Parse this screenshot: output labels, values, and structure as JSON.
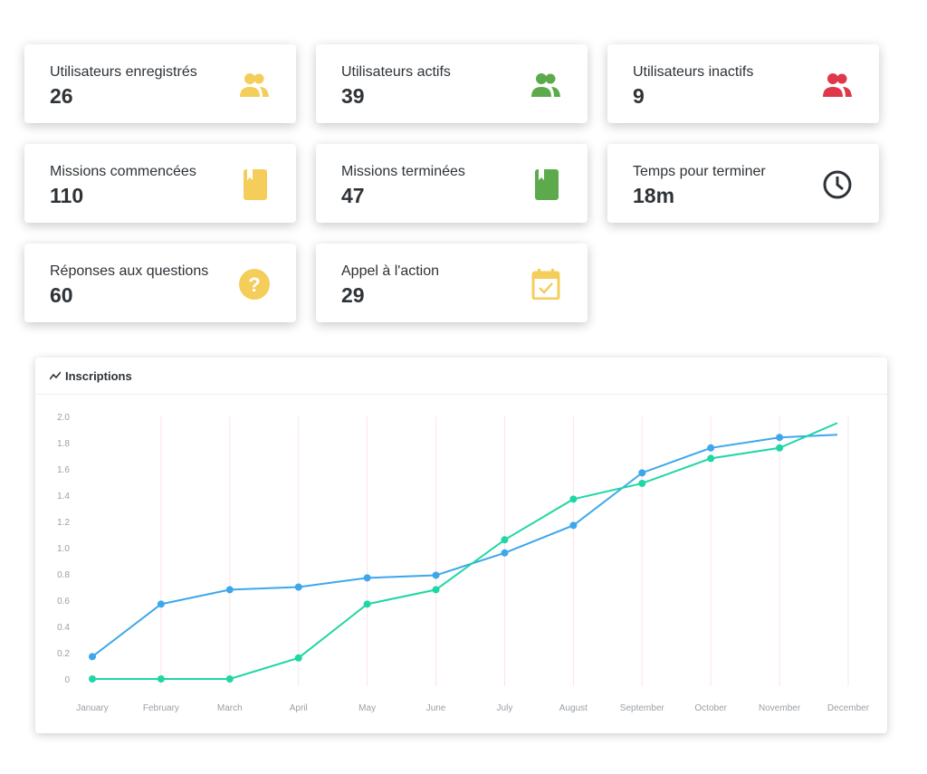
{
  "cards": [
    {
      "label": "Utilisateurs enregistrés",
      "value": "26",
      "icon": "users-icon",
      "color": "#f5cd5b"
    },
    {
      "label": "Utilisateurs actifs",
      "value": "39",
      "icon": "users-icon",
      "color": "#5daa4c"
    },
    {
      "label": "Utilisateurs inactifs",
      "value": "9",
      "icon": "users-icon",
      "color": "#df3848"
    },
    {
      "label": "Missions commencées",
      "value": "110",
      "icon": "bookmark-book-icon",
      "color": "#f5cd5b"
    },
    {
      "label": "Missions terminées",
      "value": "47",
      "icon": "bookmark-book-icon",
      "color": "#5daa4c"
    },
    {
      "label": "Temps pour terminer",
      "value": "18m",
      "icon": "clock-icon",
      "color": "#2e3338"
    },
    {
      "label": "Réponses aux questions",
      "value": "60",
      "icon": "question-circle-icon",
      "color": "#f5cd5b"
    },
    {
      "label": "Appel à l'action",
      "value": "29",
      "icon": "calendar-check-icon",
      "color": "#f5cd5b"
    }
  ],
  "chart_panel": {
    "title": "Inscriptions",
    "icon": "line-chart-icon"
  },
  "chart_data": {
    "type": "line",
    "categories": [
      "January",
      "February",
      "March",
      "April",
      "May",
      "June",
      "July",
      "August",
      "September",
      "October",
      "November",
      "December"
    ],
    "ylim": [
      0,
      2.0
    ],
    "yticks": [
      "0",
      "0.2",
      "0.4",
      "0.6",
      "0.8",
      "1.0",
      "1.2",
      "1.4",
      "1.6",
      "1.8",
      "2.0"
    ],
    "grid": "vertical",
    "series": [
      {
        "color": "#3ea7ec",
        "values": [
          0.17,
          0.57,
          0.68,
          0.7,
          0.77,
          0.79,
          0.96,
          1.17,
          1.57,
          1.76,
          1.84,
          1.86
        ]
      },
      {
        "color": "#1fd6a5",
        "values": [
          0,
          0,
          0,
          0.16,
          0.57,
          0.68,
          1.06,
          1.37,
          1.49,
          1.68,
          1.76,
          1.95
        ]
      }
    ]
  }
}
